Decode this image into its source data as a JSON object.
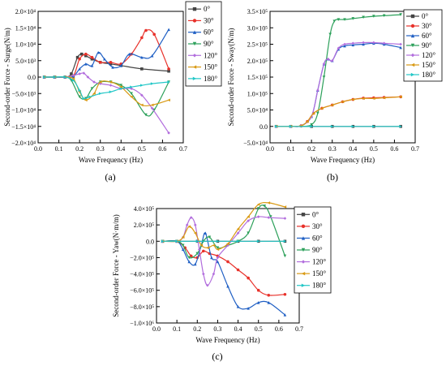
{
  "colors": {
    "0°": "#444444",
    "30°": "#e8312a",
    "60°": "#1f5fc4",
    "90°": "#2ca05a",
    "120°": "#b26ddd",
    "150°": "#d99a14",
    "180°": "#22c7c7"
  },
  "chart_data": [
    {
      "type": "line",
      "panel_label": "(a)",
      "xlabel": "Wave Frequency (Hz)",
      "ylabel": "Second-order Force - Surge(N/m)",
      "xlim": [
        0.0,
        0.7
      ],
      "ylim": [
        -20000,
        20000
      ],
      "xticks": [
        0.0,
        0.1,
        0.2,
        0.3,
        0.4,
        0.5,
        0.6,
        0.7
      ],
      "xtick_labels": [
        "0.0",
        "0.1",
        "0.2",
        "0.3",
        "0.4",
        "0.5",
        "0.6",
        "0.7"
      ],
      "yticks": [
        -20000,
        -15000,
        -10000,
        -5000,
        0,
        5000,
        10000,
        15000,
        20000
      ],
      "ytick_labels": [
        "−2.0×10⁴",
        "−1.5×10⁴",
        "−1.0×10⁴",
        "−5.0×10³",
        "0.0",
        "5.0×10³",
        "1.0×10⁴",
        "1.5×10⁴",
        "2.0×10⁴"
      ],
      "legend_position": "top-right",
      "series": [
        {
          "name": "0°",
          "x": [
            0.03,
            0.08,
            0.13,
            0.16,
            0.19,
            0.21,
            0.23,
            0.26,
            0.3,
            0.35,
            0.4,
            0.5,
            0.63
          ],
          "y": [
            0,
            0,
            0,
            1000,
            6000,
            7000,
            6500,
            5500,
            4500,
            4000,
            3500,
            2500,
            1800
          ]
        },
        {
          "name": "30°",
          "x": [
            0.03,
            0.08,
            0.13,
            0.17,
            0.2,
            0.23,
            0.26,
            0.3,
            0.35,
            0.4,
            0.45,
            0.5,
            0.52,
            0.56,
            0.63
          ],
          "y": [
            0,
            0,
            0,
            300,
            5500,
            7000,
            6000,
            4500,
            4500,
            4000,
            7000,
            12000,
            14200,
            13000,
            2500
          ]
        },
        {
          "name": "60°",
          "x": [
            0.03,
            0.08,
            0.13,
            0.17,
            0.2,
            0.23,
            0.26,
            0.29,
            0.32,
            0.36,
            0.4,
            0.44,
            0.5,
            0.55,
            0.63
          ],
          "y": [
            0,
            0,
            0,
            200,
            2500,
            4000,
            3500,
            7500,
            5500,
            3000,
            3500,
            7000,
            6000,
            6500,
            14500
          ]
        },
        {
          "name": "90°",
          "x": [
            0.03,
            0.08,
            0.13,
            0.16,
            0.2,
            0.23,
            0.26,
            0.3,
            0.35,
            0.4,
            0.45,
            0.52,
            0.56,
            0.63
          ],
          "y": [
            0,
            0,
            0,
            -1000,
            -6000,
            -6500,
            -3500,
            -1500,
            -1500,
            -2500,
            -5000,
            -11500,
            -10000,
            -1500
          ]
        },
        {
          "name": "120°",
          "x": [
            0.03,
            0.08,
            0.13,
            0.17,
            0.2,
            0.22,
            0.24,
            0.27,
            0.3,
            0.35,
            0.4,
            0.45,
            0.5,
            0.55,
            0.63
          ],
          "y": [
            0,
            0,
            0,
            500,
            1000,
            1200,
            0,
            -1500,
            -2000,
            -2500,
            -3500,
            -3500,
            -5500,
            -9500,
            -17000
          ]
        },
        {
          "name": "150°",
          "x": [
            0.03,
            0.08,
            0.13,
            0.17,
            0.2,
            0.23,
            0.27,
            0.3,
            0.35,
            0.4,
            0.45,
            0.5,
            0.55,
            0.63
          ],
          "y": [
            0,
            0,
            0,
            -500,
            -4500,
            -7000,
            -5000,
            -1500,
            -1500,
            -3000,
            -6000,
            -8500,
            -8500,
            -7000
          ]
        },
        {
          "name": "180°",
          "x": [
            0.03,
            0.08,
            0.13,
            0.17,
            0.2,
            0.22,
            0.25,
            0.3,
            0.35,
            0.4,
            0.45,
            0.5,
            0.55,
            0.63
          ],
          "y": [
            0,
            0,
            0,
            -1000,
            -4000,
            -6500,
            -6000,
            -5000,
            -4500,
            -3500,
            -3000,
            -2500,
            -2000,
            -1500
          ]
        }
      ]
    },
    {
      "type": "line",
      "panel_label": "(b)",
      "xlabel": "Wave Frequency (Hz)",
      "ylabel": "Second-order Force - Sway(N/m)",
      "xlim": [
        0.0,
        0.7
      ],
      "ylim": [
        -50000,
        350000
      ],
      "xticks": [
        0.0,
        0.1,
        0.2,
        0.3,
        0.4,
        0.5,
        0.6,
        0.7
      ],
      "xtick_labels": [
        "0.0",
        "0.1",
        "0.2",
        "0.3",
        "0.4",
        "0.5",
        "0.6",
        "0.7"
      ],
      "yticks": [
        -50000,
        0,
        50000,
        100000,
        150000,
        200000,
        250000,
        300000,
        350000
      ],
      "ytick_labels": [
        "−5.0×10⁴",
        "0.0",
        "5.0×10⁴",
        "1.0×10⁵",
        "1.5×10⁵",
        "2.0×10⁵",
        "2.5×10⁵",
        "3.0×10⁵",
        "3.5×10⁵"
      ],
      "legend_position": "top-right",
      "series": [
        {
          "name": "0°",
          "x": [
            0.03,
            0.1,
            0.2,
            0.3,
            0.4,
            0.5,
            0.63
          ],
          "y": [
            0,
            0,
            0,
            0,
            0,
            0,
            0
          ]
        },
        {
          "name": "30°",
          "x": [
            0.03,
            0.1,
            0.15,
            0.18,
            0.21,
            0.25,
            0.3,
            0.35,
            0.4,
            0.45,
            0.5,
            0.55,
            0.63
          ],
          "y": [
            0,
            0,
            2000,
            15000,
            40000,
            55000,
            65000,
            75000,
            82000,
            86000,
            87000,
            88000,
            90000
          ]
        },
        {
          "name": "60°",
          "x": [
            0.03,
            0.1,
            0.15,
            0.2,
            0.23,
            0.26,
            0.28,
            0.3,
            0.33,
            0.36,
            0.4,
            0.45,
            0.5,
            0.55,
            0.63
          ],
          "y": [
            0,
            0,
            2000,
            30000,
            110000,
            190000,
            205000,
            200000,
            235000,
            245000,
            248000,
            250000,
            253000,
            250000,
            240000
          ]
        },
        {
          "name": "90°",
          "x": [
            0.03,
            0.1,
            0.15,
            0.2,
            0.23,
            0.26,
            0.29,
            0.31,
            0.33,
            0.36,
            0.4,
            0.45,
            0.5,
            0.55,
            0.63
          ],
          "y": [
            0,
            0,
            0,
            5000,
            40000,
            150000,
            280000,
            320000,
            325000,
            325000,
            328000,
            332000,
            335000,
            337000,
            340000
          ]
        },
        {
          "name": "120°",
          "x": [
            0.03,
            0.1,
            0.15,
            0.2,
            0.23,
            0.26,
            0.28,
            0.3,
            0.33,
            0.36,
            0.4,
            0.45,
            0.5,
            0.55,
            0.63
          ],
          "y": [
            0,
            0,
            2000,
            30000,
            110000,
            190000,
            205000,
            200000,
            238000,
            250000,
            253000,
            255000,
            255000,
            253000,
            250000
          ]
        },
        {
          "name": "150°",
          "x": [
            0.03,
            0.1,
            0.15,
            0.18,
            0.21,
            0.25,
            0.3,
            0.35,
            0.4,
            0.45,
            0.5,
            0.55,
            0.63
          ],
          "y": [
            0,
            0,
            2000,
            15000,
            40000,
            55000,
            65000,
            75000,
            82000,
            85000,
            85000,
            87000,
            90000
          ]
        },
        {
          "name": "180°",
          "x": [
            0.03,
            0.1,
            0.2,
            0.3,
            0.4,
            0.5,
            0.63
          ],
          "y": [
            0,
            0,
            0,
            0,
            0,
            0,
            0
          ]
        }
      ]
    },
    {
      "type": "line",
      "panel_label": "(c)",
      "xlabel": "Wave Frequency (Hz)",
      "ylabel": "Second-order Force - Yaw(N·m/m)",
      "xlim": [
        0.0,
        0.7
      ],
      "ylim": [
        -1000000,
        400000
      ],
      "xticks": [
        0.0,
        0.1,
        0.2,
        0.3,
        0.4,
        0.5,
        0.6,
        0.7
      ],
      "xtick_labels": [
        "0.0",
        "0.1",
        "0.2",
        "0.3",
        "0.4",
        "0.5",
        "0.6",
        "0.7"
      ],
      "yticks": [
        -1000000,
        -800000,
        -600000,
        -400000,
        -200000,
        0,
        200000,
        400000
      ],
      "ytick_labels": [
        "−1.0×10⁶",
        "−8.0×10⁵",
        "−6.0×10⁵",
        "−4.0×10⁵",
        "−2.0×10⁵",
        "0.0",
        "2.0×10⁵",
        "4.0×10⁵"
      ],
      "legend_position": "top-right",
      "series": [
        {
          "name": "0°",
          "x": [
            0.03,
            0.1,
            0.2,
            0.3,
            0.4,
            0.5,
            0.63
          ],
          "y": [
            0,
            0,
            0,
            0,
            0,
            0,
            0
          ]
        },
        {
          "name": "30°",
          "x": [
            0.03,
            0.1,
            0.14,
            0.17,
            0.2,
            0.23,
            0.26,
            0.3,
            0.35,
            0.4,
            0.45,
            0.5,
            0.55,
            0.63
          ],
          "y": [
            0,
            0,
            -80000,
            -180000,
            -200000,
            -120000,
            -150000,
            -180000,
            -250000,
            -350000,
            -450000,
            -600000,
            -660000,
            -650000
          ]
        },
        {
          "name": "60°",
          "x": [
            0.03,
            0.1,
            0.13,
            0.16,
            0.19,
            0.22,
            0.24,
            0.27,
            0.3,
            0.35,
            0.4,
            0.45,
            0.5,
            0.55,
            0.63
          ],
          "y": [
            0,
            0,
            -100000,
            -250000,
            -280000,
            -50000,
            100000,
            -200000,
            -250000,
            -550000,
            -800000,
            -820000,
            -750000,
            -750000,
            -900000
          ]
        },
        {
          "name": "90°",
          "x": [
            0.03,
            0.1,
            0.13,
            0.16,
            0.2,
            0.23,
            0.26,
            0.3,
            0.35,
            0.4,
            0.45,
            0.5,
            0.53,
            0.56,
            0.63
          ],
          "y": [
            0,
            0,
            -50000,
            -200000,
            -150000,
            0,
            50000,
            -80000,
            -50000,
            0,
            100000,
            400000,
            430000,
            300000,
            -180000
          ]
        },
        {
          "name": "120°",
          "x": [
            0.03,
            0.1,
            0.13,
            0.15,
            0.17,
            0.19,
            0.21,
            0.23,
            0.25,
            0.28,
            0.3,
            0.35,
            0.4,
            0.45,
            0.5,
            0.55,
            0.63
          ],
          "y": [
            0,
            0,
            50000,
            200000,
            290000,
            200000,
            -100000,
            -400000,
            -540000,
            -400000,
            -200000,
            -50000,
            100000,
            250000,
            300000,
            290000,
            280000
          ]
        },
        {
          "name": "150°",
          "x": [
            0.03,
            0.1,
            0.13,
            0.16,
            0.19,
            0.22,
            0.25,
            0.28,
            0.3,
            0.35,
            0.4,
            0.45,
            0.5,
            0.55,
            0.63
          ],
          "y": [
            0,
            0,
            50000,
            180000,
            100000,
            -50000,
            -80000,
            -50000,
            -100000,
            -30000,
            150000,
            300000,
            450000,
            470000,
            420000
          ]
        },
        {
          "name": "180°",
          "x": [
            0.03,
            0.1,
            0.2,
            0.3,
            0.4,
            0.5,
            0.63
          ],
          "y": [
            0,
            0,
            0,
            0,
            0,
            0,
            0
          ]
        }
      ]
    }
  ]
}
